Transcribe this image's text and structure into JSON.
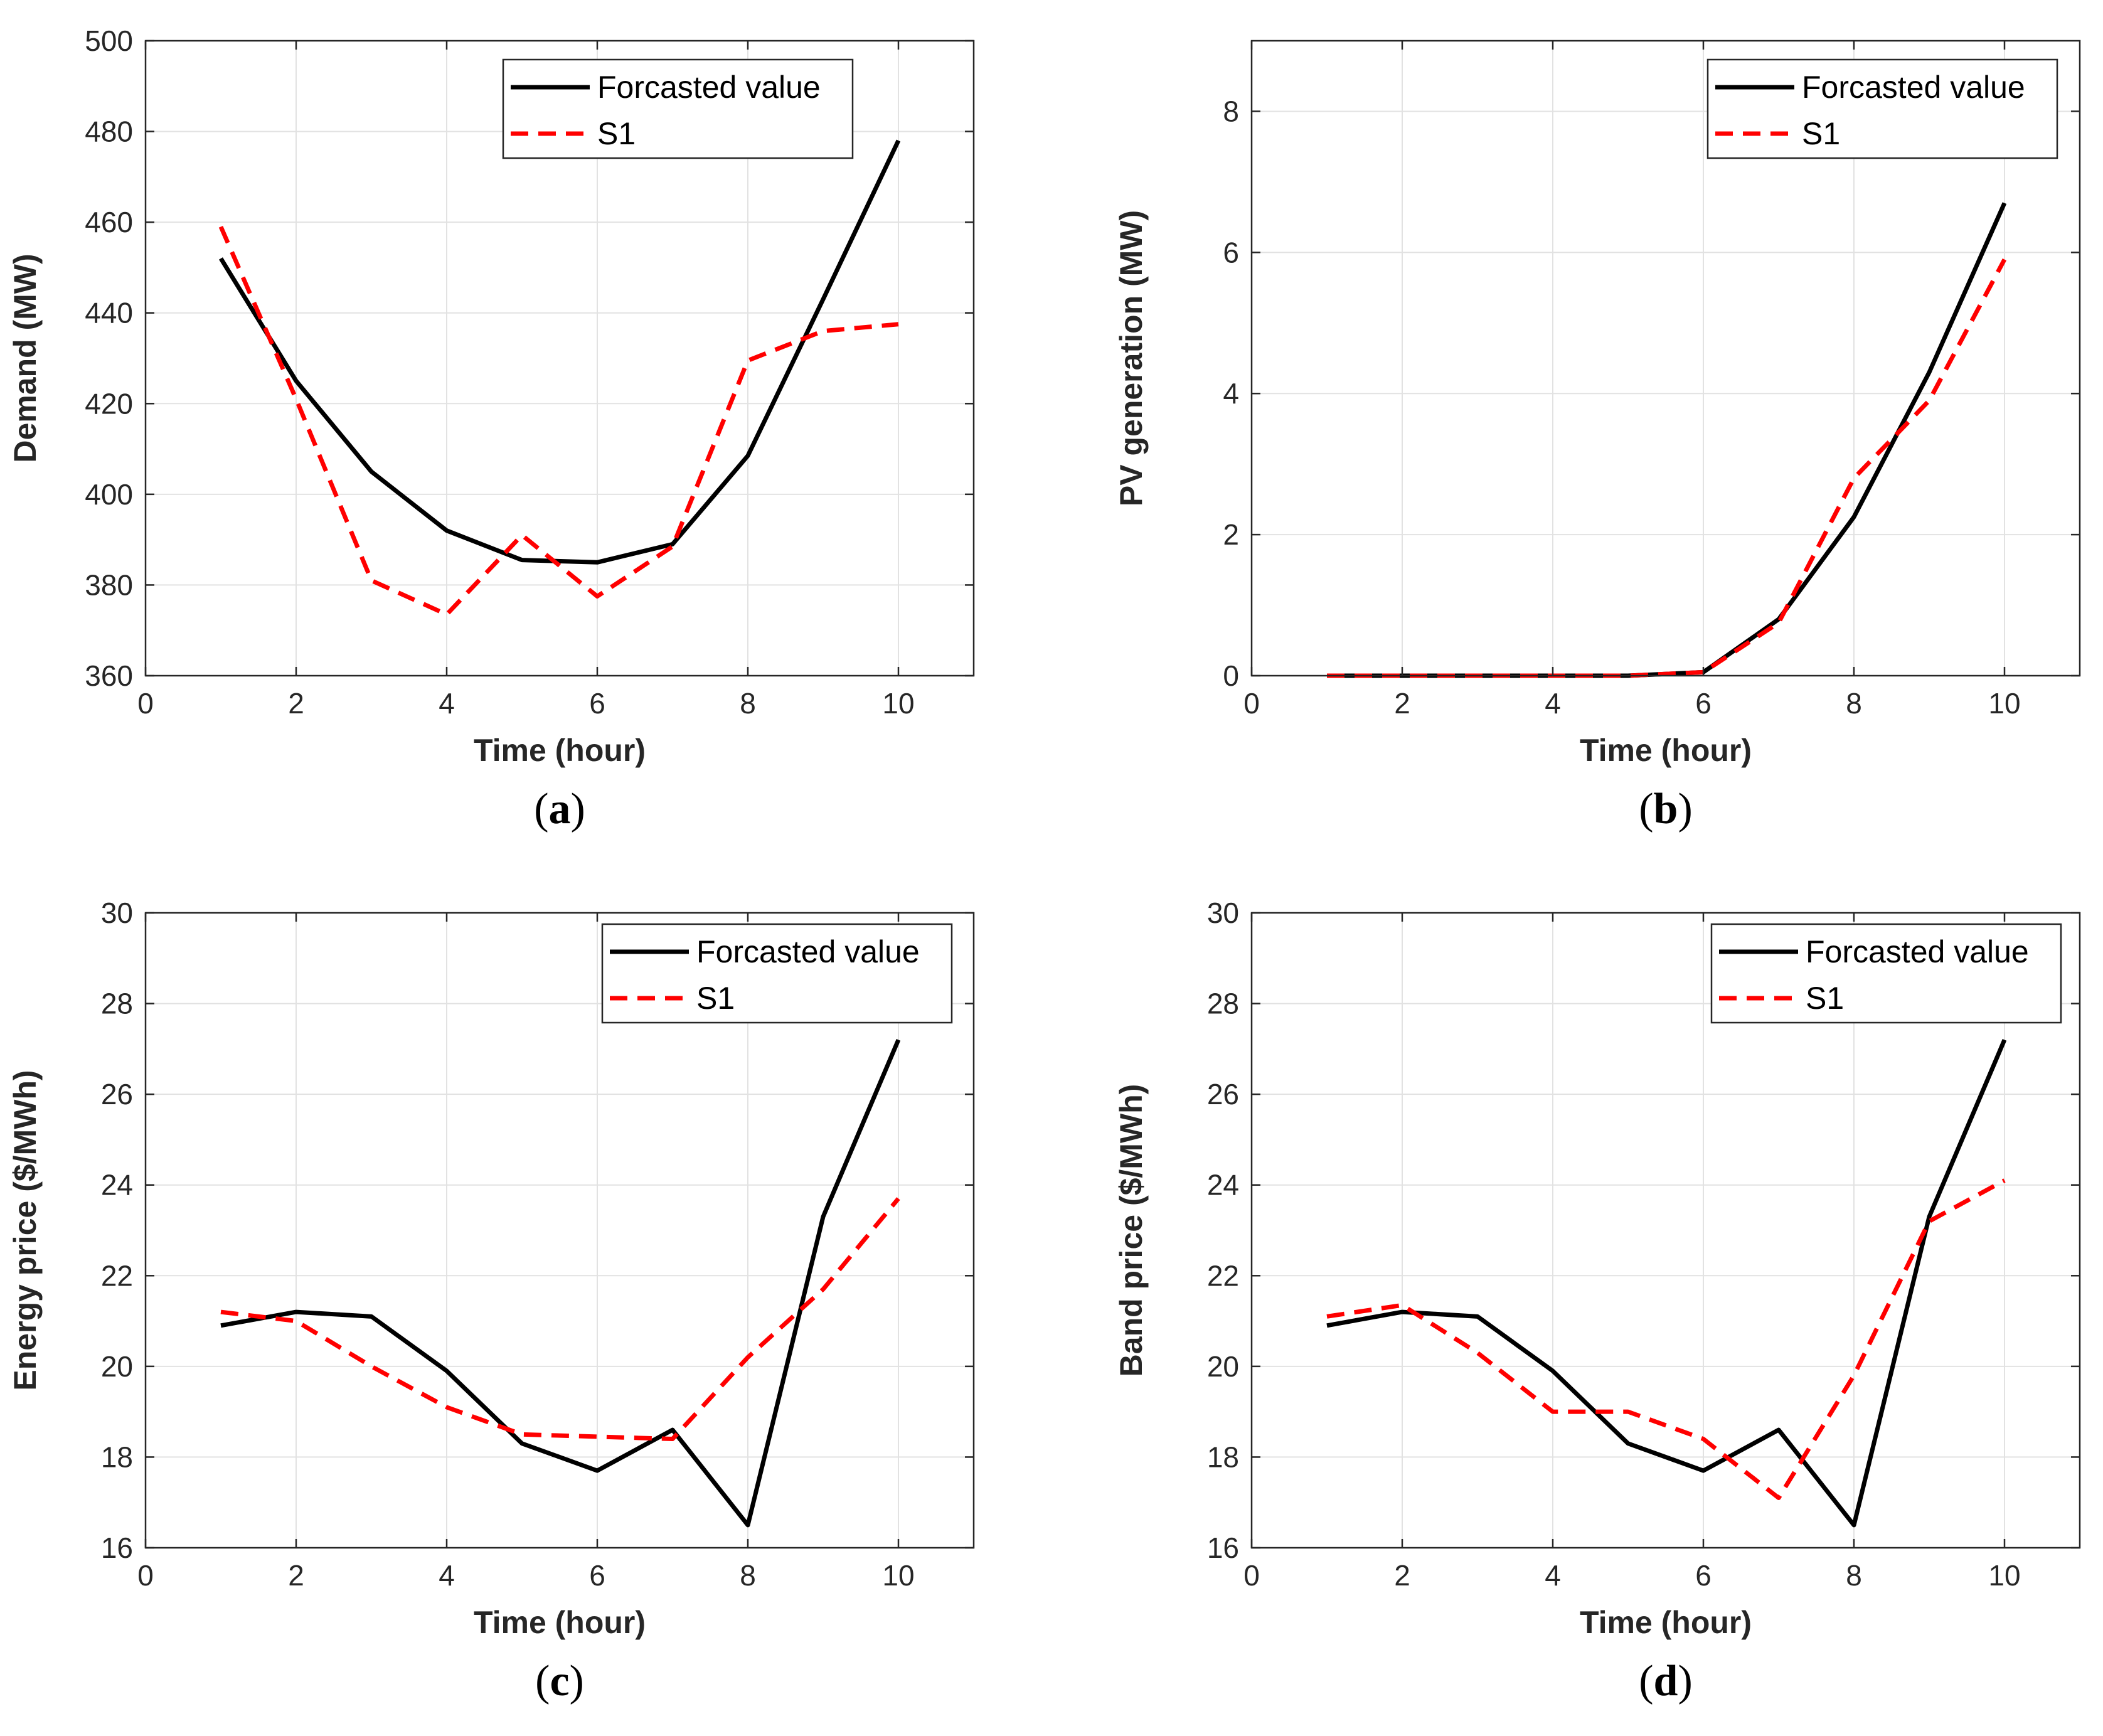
{
  "colors": {
    "forecast": "#000000",
    "s1": "#ff0000",
    "grid": "#e2e2e2",
    "axis": "#262626",
    "background": "#ffffff"
  },
  "chart_data": [
    {
      "id": "a",
      "type": "line",
      "caption": {
        "open": "(",
        "letter": "a",
        "close": ")"
      },
      "xlabel": "Time (hour)",
      "ylabel": "Demand (MW)",
      "xlim": [
        0,
        11
      ],
      "ylim": [
        360,
        500
      ],
      "xticks": [
        0,
        2,
        4,
        6,
        8,
        10
      ],
      "yticks": [
        360,
        380,
        400,
        420,
        440,
        460,
        480,
        500
      ],
      "grid": true,
      "legend_position": "top-right",
      "x": [
        1,
        2,
        3,
        4,
        5,
        6,
        7,
        8,
        9,
        10
      ],
      "series": [
        {
          "name": "Forcasted value",
          "style": "solid",
          "values": [
            452,
            425,
            405,
            392,
            385.5,
            385,
            389,
            408.5,
            443,
            478
          ]
        },
        {
          "name": "S1",
          "style": "dashed",
          "values": [
            459,
            421,
            381,
            373.5,
            391,
            377.5,
            388.5,
            429.5,
            436,
            437.5
          ]
        }
      ]
    },
    {
      "id": "b",
      "type": "line",
      "caption": {
        "open": "(",
        "letter": "b",
        "close": ")"
      },
      "xlabel": "Time (hour)",
      "ylabel": "PV generation (MW)",
      "xlim": [
        0,
        11
      ],
      "ylim": [
        0,
        9
      ],
      "xticks": [
        0,
        2,
        4,
        6,
        8,
        10
      ],
      "yticks": [
        0,
        2,
        4,
        6,
        8
      ],
      "grid": true,
      "legend_position": "top-right",
      "x": [
        1,
        2,
        3,
        4,
        5,
        6,
        7,
        8,
        9,
        10
      ],
      "series": [
        {
          "name": "Forcasted value",
          "style": "solid",
          "values": [
            0,
            0,
            0,
            0,
            0,
            0.05,
            0.8,
            2.25,
            4.3,
            6.7
          ]
        },
        {
          "name": "S1",
          "style": "dashed",
          "values": [
            0,
            0,
            0,
            0,
            0,
            0.05,
            0.75,
            2.8,
            3.9,
            5.9
          ]
        }
      ]
    },
    {
      "id": "c",
      "type": "line",
      "caption": {
        "open": "(",
        "letter": "c",
        "close": ")"
      },
      "xlabel": "Time (hour)",
      "ylabel": "Energy price ($/MWh)",
      "xlim": [
        0,
        11
      ],
      "ylim": [
        16,
        30
      ],
      "xticks": [
        0,
        2,
        4,
        6,
        8,
        10
      ],
      "yticks": [
        16,
        18,
        20,
        22,
        24,
        26,
        28,
        30
      ],
      "grid": true,
      "legend_position": "top-right",
      "x": [
        1,
        2,
        3,
        4,
        5,
        6,
        7,
        8,
        9,
        10
      ],
      "series": [
        {
          "name": "Forcasted value",
          "style": "solid",
          "values": [
            20.9,
            21.2,
            21.1,
            19.9,
            18.3,
            17.7,
            18.6,
            16.5,
            23.3,
            27.2
          ]
        },
        {
          "name": "S1",
          "style": "dashed",
          "values": [
            21.2,
            21.0,
            20.0,
            19.1,
            18.5,
            18.45,
            18.4,
            20.2,
            21.7,
            23.7
          ]
        }
      ]
    },
    {
      "id": "d",
      "type": "line",
      "caption": {
        "open": "(",
        "letter": "d",
        "close": ")"
      },
      "xlabel": "Time (hour)",
      "ylabel": "Band price ($/MWh)",
      "xlim": [
        0,
        11
      ],
      "ylim": [
        16,
        30
      ],
      "xticks": [
        0,
        2,
        4,
        6,
        8,
        10
      ],
      "yticks": [
        16,
        18,
        20,
        22,
        24,
        26,
        28,
        30
      ],
      "grid": true,
      "legend_position": "top-right",
      "x": [
        1,
        2,
        3,
        4,
        5,
        6,
        7,
        8,
        9,
        10
      ],
      "series": [
        {
          "name": "Forcasted value",
          "style": "solid",
          "values": [
            20.9,
            21.2,
            21.1,
            19.9,
            18.3,
            17.7,
            18.6,
            16.5,
            23.3,
            27.2
          ]
        },
        {
          "name": "S1",
          "style": "dashed",
          "values": [
            21.1,
            21.35,
            20.3,
            19.0,
            19.0,
            18.4,
            17.1,
            19.8,
            23.2,
            24.1
          ]
        }
      ]
    }
  ]
}
